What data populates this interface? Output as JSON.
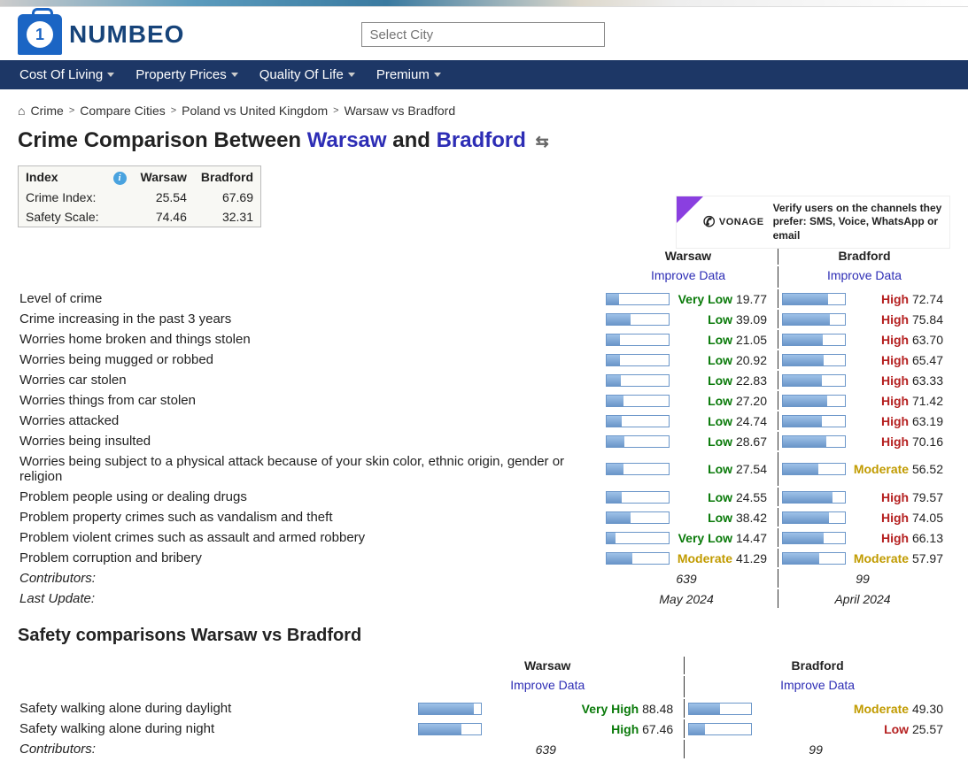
{
  "logo_text": "NUMBEO",
  "search_placeholder": "Select City",
  "nav": [
    "Cost Of Living",
    "Property Prices",
    "Quality Of Life",
    "Premium"
  ],
  "breadcrumb": [
    "Crime",
    "Compare Cities",
    "Poland vs United Kingdom",
    "Warsaw vs Bradford"
  ],
  "title_prefix": "Crime Comparison Between ",
  "city1": "Warsaw",
  "title_mid": " and ",
  "city2": "Bradford",
  "index_table": {
    "headers": [
      "Index",
      "Warsaw",
      "Bradford"
    ],
    "rows": [
      {
        "label": "Crime Index:",
        "v1": "25.54",
        "v2": "67.69"
      },
      {
        "label": "Safety Scale:",
        "v1": "74.46",
        "v2": "32.31"
      }
    ]
  },
  "ad": {
    "brand": "VONAGE",
    "text": "Verify users on the channels they prefer: SMS, Voice, WhatsApp or email"
  },
  "improve_label": "Improve Data",
  "crime_rows": [
    {
      "label": "Level of crime",
      "c1": {
        "v": 19.77,
        "r": "Very Low",
        "cls": "r-verylow"
      },
      "c2": {
        "v": 72.74,
        "r": "High",
        "cls": "r-high"
      }
    },
    {
      "label": "Crime increasing in the past 3 years",
      "c1": {
        "v": 39.09,
        "r": "Low",
        "cls": "r-low"
      },
      "c2": {
        "v": 75.84,
        "r": "High",
        "cls": "r-high"
      }
    },
    {
      "label": "Worries home broken and things stolen",
      "c1": {
        "v": 21.05,
        "r": "Low",
        "cls": "r-low"
      },
      "c2": {
        "v": 63.7,
        "r": "High",
        "cls": "r-high"
      }
    },
    {
      "label": "Worries being mugged or robbed",
      "c1": {
        "v": 20.92,
        "r": "Low",
        "cls": "r-low"
      },
      "c2": {
        "v": 65.47,
        "r": "High",
        "cls": "r-high"
      }
    },
    {
      "label": "Worries car stolen",
      "c1": {
        "v": 22.83,
        "r": "Low",
        "cls": "r-low"
      },
      "c2": {
        "v": 63.33,
        "r": "High",
        "cls": "r-high"
      }
    },
    {
      "label": "Worries things from car stolen",
      "c1": {
        "v": 27.2,
        "r": "Low",
        "cls": "r-low"
      },
      "c2": {
        "v": 71.42,
        "r": "High",
        "cls": "r-high"
      }
    },
    {
      "label": "Worries attacked",
      "c1": {
        "v": 24.74,
        "r": "Low",
        "cls": "r-low"
      },
      "c2": {
        "v": 63.19,
        "r": "High",
        "cls": "r-high"
      }
    },
    {
      "label": "Worries being insulted",
      "c1": {
        "v": 28.67,
        "r": "Low",
        "cls": "r-low"
      },
      "c2": {
        "v": 70.16,
        "r": "High",
        "cls": "r-high"
      }
    },
    {
      "label": "Worries being subject to a physical attack because of your skin color, ethnic origin, gender or religion",
      "c1": {
        "v": 27.54,
        "r": "Low",
        "cls": "r-low"
      },
      "c2": {
        "v": 56.52,
        "r": "Moderate",
        "cls": "r-moderate"
      }
    },
    {
      "label": "Problem people using or dealing drugs",
      "c1": {
        "v": 24.55,
        "r": "Low",
        "cls": "r-low"
      },
      "c2": {
        "v": 79.57,
        "r": "High",
        "cls": "r-high"
      }
    },
    {
      "label": "Problem property crimes such as vandalism and theft",
      "c1": {
        "v": 38.42,
        "r": "Low",
        "cls": "r-low"
      },
      "c2": {
        "v": 74.05,
        "r": "High",
        "cls": "r-high"
      }
    },
    {
      "label": "Problem violent crimes such as assault and armed robbery",
      "c1": {
        "v": 14.47,
        "r": "Very Low",
        "cls": "r-verylow"
      },
      "c2": {
        "v": 66.13,
        "r": "High",
        "cls": "r-high"
      }
    },
    {
      "label": "Problem corruption and bribery",
      "c1": {
        "v": 41.29,
        "r": "Moderate",
        "cls": "r-moderate"
      },
      "c2": {
        "v": 57.97,
        "r": "Moderate",
        "cls": "r-moderate"
      }
    }
  ],
  "contributors_label": "Contributors:",
  "contributors": {
    "c1": "639",
    "c2": "99"
  },
  "lastupdate_label": "Last Update:",
  "lastupdate": {
    "c1": "May 2024",
    "c2": "April 2024"
  },
  "safety_title": "Safety comparisons Warsaw vs Bradford",
  "safety_rows": [
    {
      "label": "Safety walking alone during daylight",
      "c1": {
        "v": 88.48,
        "r": "Very High",
        "cls": "r-veryhigh"
      },
      "c2": {
        "v": 49.3,
        "r": "Moderate",
        "cls": "r-moderate"
      }
    },
    {
      "label": "Safety walking alone during night",
      "c1": {
        "v": 67.46,
        "r": "High",
        "cls": "r-veryhigh"
      },
      "c2": {
        "v": 25.57,
        "r": "Low",
        "cls": "r-low2"
      }
    }
  ],
  "safety_contributors": {
    "c1": "639",
    "c2": "99"
  }
}
